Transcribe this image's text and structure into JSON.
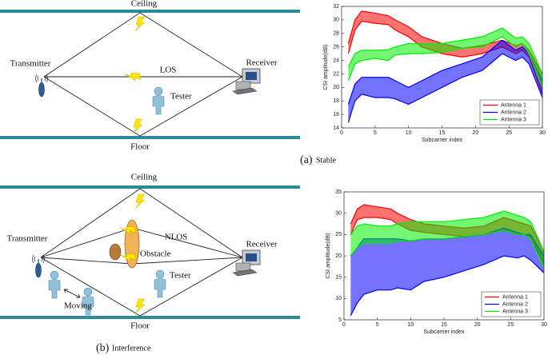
{
  "panels": [
    {
      "caption_label": "(a)",
      "caption": "Stable",
      "diagram": {
        "ceiling": "Ceiling",
        "floor": "Floor",
        "transmitter": "Transmitter",
        "receiver": "Receiver",
        "link": "LOS",
        "tester": "Tester"
      },
      "chart": {
        "type": "line-band",
        "x_label": "Subcarrier index",
        "y_label": "CSI amplitude(dB)",
        "x": [
          1,
          2,
          3,
          5,
          7,
          8,
          10,
          12,
          15,
          18,
          21,
          24,
          26,
          27,
          28,
          30
        ],
        "xlim": [
          0,
          30
        ],
        "xticks": [
          0,
          5,
          10,
          15,
          20,
          25,
          30
        ],
        "ylim": [
          14,
          32
        ],
        "yticks": [
          14,
          16,
          18,
          20,
          22,
          24,
          26,
          28,
          30,
          32
        ],
        "legend": "lower right",
        "series": [
          {
            "name": "Antenna 1",
            "color": "#ff0000",
            "low": [
              25,
              28.5,
              29.8,
              29.5,
              29.3,
              28.5,
              27.5,
              26,
              25,
              24.5,
              25,
              26,
              25,
              25.5,
              24.5,
              19
            ],
            "high": [
              26.5,
              30,
              31.3,
              31,
              30.6,
              30,
              29,
              27.5,
              26.5,
              25.8,
              26.2,
              27,
              26.2,
              26.5,
              25.5,
              22
            ]
          },
          {
            "name": "Antenna 2",
            "color": "#0000ff",
            "low": [
              14.8,
              18,
              19,
              18.5,
              18.5,
              18.3,
              17.5,
              18.5,
              20,
              21.5,
              22.5,
              25,
              24,
              24.5,
              23.5,
              18.5
            ],
            "high": [
              17.5,
              20.5,
              21.5,
              21.5,
              21.5,
              21,
              20,
              21,
              22.5,
              23.5,
              24.5,
              27,
              25.5,
              26,
              25,
              21
            ]
          },
          {
            "name": "Antenna 3",
            "color": "#00ee00",
            "low": [
              21,
              23.5,
              24,
              24.3,
              24,
              24.8,
              25,
              25,
              25.2,
              25.8,
              26,
              27.5,
              26,
              26.5,
              25,
              20
            ],
            "high": [
              23,
              25,
              25.5,
              25.5,
              25.6,
              26,
              26.5,
              26.5,
              26.5,
              27,
              27.5,
              28.8,
              27.3,
              27.5,
              26.5,
              22
            ]
          }
        ]
      }
    },
    {
      "caption_label": "(b)",
      "caption": "Interference",
      "diagram": {
        "ceiling": "Ceiling",
        "floor": "Floor",
        "transmitter": "Transmitter",
        "receiver": "Receiver",
        "link": "NLOS",
        "obstacle": "Obstacle",
        "tester": "Tester",
        "moving": "Moving"
      },
      "chart": {
        "type": "line-band",
        "x_label": "Subcarrier index",
        "y_label": "CSI amplitude(dB)",
        "x": [
          1,
          2,
          3,
          5,
          7,
          8,
          10,
          12,
          15,
          18,
          21,
          24,
          26,
          27,
          28,
          30
        ],
        "xlim": [
          0,
          30
        ],
        "xticks": [
          0,
          5,
          10,
          15,
          20,
          25,
          30
        ],
        "ylim": [
          5,
          35
        ],
        "yticks": [
          5,
          10,
          15,
          20,
          25,
          30,
          35
        ],
        "legend": "lower right",
        "series": [
          {
            "name": "Antenna 1",
            "color": "#ff0000",
            "low": [
              25,
              28.5,
              29,
              29,
              28.5,
              27.5,
              26,
              25.5,
              25,
              24.5,
              25,
              26,
              25,
              25,
              24.5,
              18
            ],
            "high": [
              27.5,
              31,
              32,
              31.5,
              31,
              30,
              28.5,
              27.5,
              27,
              26.5,
              27,
              29,
              28,
              27.5,
              27,
              21
            ]
          },
          {
            "name": "Antenna 2",
            "color": "#0000ff",
            "low": [
              6,
              9,
              11,
              12,
              12,
              12.5,
              12,
              14,
              15,
              16.5,
              18,
              20,
              19.5,
              20,
              19,
              16
            ],
            "high": [
              20,
              22,
              24,
              24,
              24,
              24,
              23.5,
              24,
              24,
              24.5,
              25,
              26.5,
              25.5,
              25,
              25,
              20
            ]
          },
          {
            "name": "Antenna 3",
            "color": "#00ee00",
            "low": [
              20,
              22,
              23,
              23,
              23,
              23.5,
              23.5,
              24,
              24,
              24.5,
              25,
              26,
              25,
              25,
              24,
              17
            ],
            "high": [
              25,
              27,
              27.5,
              27,
              27,
              27.5,
              28,
              28,
              28,
              28.5,
              29,
              30.5,
              29.5,
              29,
              28,
              21
            ]
          }
        ]
      }
    }
  ]
}
